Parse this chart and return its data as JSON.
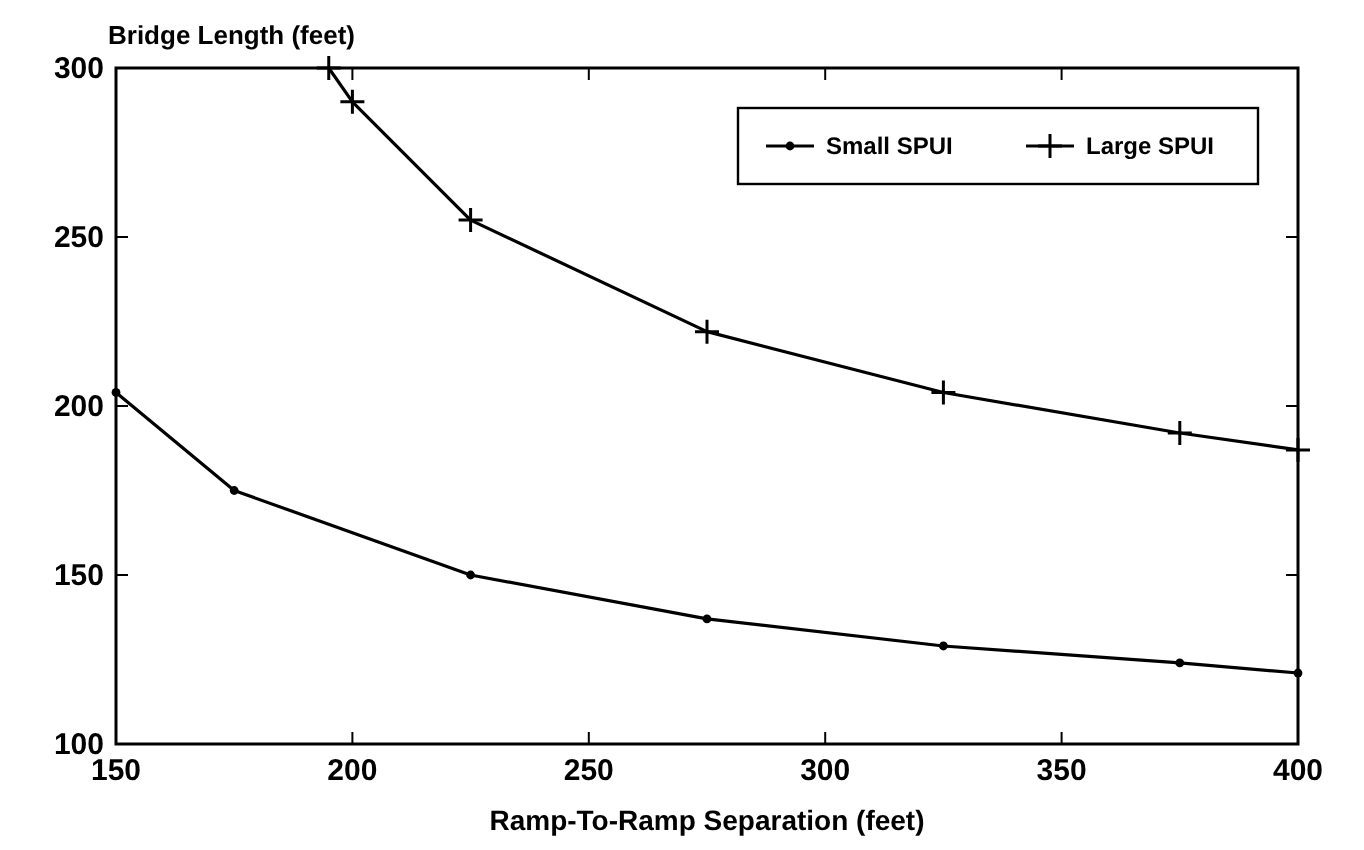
{
  "chart_data": {
    "type": "line",
    "ylabel": "Bridge Length (feet)",
    "xlabel": "Ramp-To-Ramp Separation (feet)",
    "xlim": [
      150,
      400
    ],
    "xticks": [
      150,
      200,
      250,
      300,
      350,
      400
    ],
    "ylim": [
      100,
      300
    ],
    "yticks": [
      100,
      150,
      200,
      250,
      300
    ],
    "grid": false,
    "legend": "top right",
    "series": [
      {
        "name": "Small SPUI",
        "color": "#000000",
        "marker": "circle",
        "x": [
          150,
          175,
          225,
          275,
          325,
          375,
          400
        ],
        "values": [
          204,
          175,
          150,
          137,
          129,
          124,
          121
        ]
      },
      {
        "name": "Large SPUI",
        "color": "#000000",
        "marker": "cross",
        "x": [
          195,
          200,
          225,
          275,
          325,
          375,
          400
        ],
        "values": [
          300,
          290,
          255,
          222,
          204,
          192,
          187
        ]
      }
    ]
  }
}
